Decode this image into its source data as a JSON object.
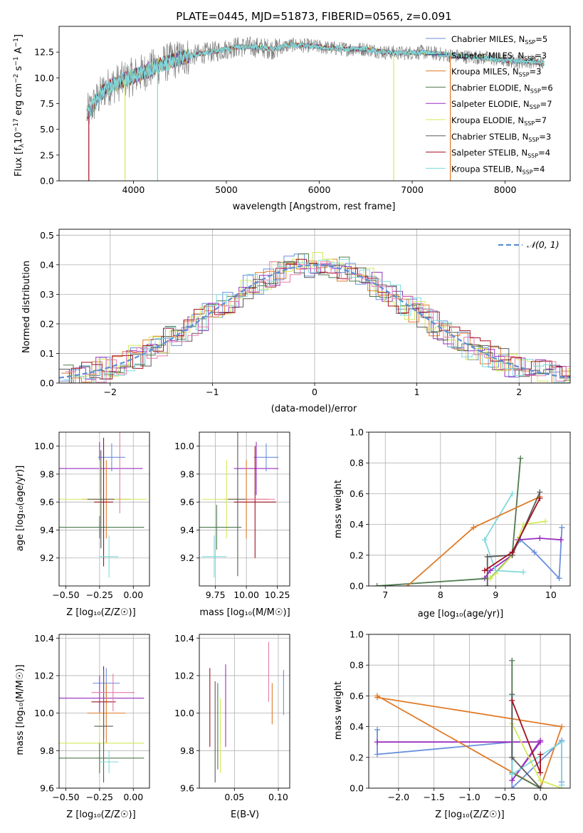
{
  "colors": {
    "Chabrier MILES": "#6a8fdc",
    "Salpeter MILES": "#2d3c88",
    "Kroupa MILES": "#e07b28",
    "Chabrier ELODIE": "#4d7a4d",
    "Salpeter ELODIE": "#9b2fc0",
    "Kroupa ELODIE": "#d4ea5a",
    "Chabrier STELIB": "#5a5a5a",
    "Salpeter STELIB": "#a3101d",
    "Kroupa STELIB": "#7fd9dc",
    "data": "#808080",
    "extra1": "#e57aa8",
    "gauss": "#5b8fd6"
  },
  "chart_data": [
    {
      "id": "spectrum",
      "type": "line",
      "title": "PLATE=0445, MJD=51873, FIBERID=0565, z=0.091",
      "xlabel": "wavelength [Angstrom, rest frame]",
      "ylabel_main": "Flux [f",
      "ylabel_sub": "λ",
      "ylabel_rest": "10",
      "ylabel_exp1": "−17",
      "ylabel_tail": " erg cm",
      "ylabel_exp2": "−2",
      "ylabel_tail2": " s",
      "ylabel_exp3": "−1",
      "ylabel_tail3": " A",
      "ylabel_exp4": "−1",
      "ylabel_end": "]",
      "xlim": [
        3200,
        8700
      ],
      "ylim": [
        0,
        15
      ],
      "xticks": [
        "4000",
        "5000",
        "6000",
        "7000",
        "8000"
      ],
      "xtick_values": [
        4000,
        5000,
        6000,
        7000,
        8000
      ],
      "yticks": [
        "0.0",
        "2.5",
        "5.0",
        "7.5",
        "10.0",
        "12.5"
      ],
      "ytick_values": [
        0,
        2.5,
        5,
        7.5,
        10,
        12.5
      ],
      "grid": false,
      "legend": [
        {
          "name": "Chabrier MILES",
          "nssp": "5"
        },
        {
          "name": "Salpeter MILES",
          "nssp": "3"
        },
        {
          "name": "Kroupa MILES",
          "nssp": "3"
        },
        {
          "name": "Chabrier ELODIE",
          "nssp": "6"
        },
        {
          "name": "Salpeter ELODIE",
          "nssp": "7"
        },
        {
          "name": "Kroupa ELODIE",
          "nssp": "7"
        },
        {
          "name": "Chabrier STELIB",
          "nssp": "3"
        },
        {
          "name": "Salpeter STELIB",
          "nssp": "4"
        },
        {
          "name": "Kroupa STELIB",
          "nssp": "4"
        }
      ],
      "legend_prefix": "N",
      "legend_sub": "SSP",
      "legend_placement": "upper right",
      "continuum_approx": {
        "x": [
          3500,
          3700,
          3900,
          4100,
          4300,
          4500,
          4700,
          4900,
          5100,
          5300,
          5500,
          5700,
          5900,
          6100,
          6300,
          6500,
          6700,
          6900,
          7100,
          7300,
          7500,
          7700,
          7900,
          8100,
          8300,
          8400
        ],
        "y": [
          6.5,
          9.0,
          9.8,
          10.5,
          11.3,
          11.9,
          12.3,
          12.6,
          13.0,
          13.0,
          12.8,
          13.2,
          13.1,
          12.9,
          12.8,
          12.8,
          12.5,
          12.4,
          12.5,
          12.3,
          12.1,
          12.0,
          11.8,
          11.6,
          11.6,
          11.4
        ]
      },
      "drops": [
        {
          "x": 3520,
          "series": "Salpeter STELIB"
        },
        {
          "x": 3910,
          "series": "Kroupa ELODIE"
        },
        {
          "x": 4260,
          "series": "Kroupa STELIB"
        },
        {
          "x": 6800,
          "series": "Kroupa ELODIE"
        },
        {
          "x": 7410,
          "series": "Kroupa MILES"
        }
      ]
    },
    {
      "id": "residuals",
      "type": "line",
      "xlabel": "(data-model)/error",
      "ylabel": "Normed distribution",
      "xlim": [
        -2.5,
        2.5
      ],
      "ylim": [
        0,
        0.52
      ],
      "xticks": [
        "−2",
        "−1",
        "0",
        "1",
        "2"
      ],
      "xtick_values": [
        -2,
        -1,
        0,
        1,
        2
      ],
      "yticks": [
        "0.0",
        "0.1",
        "0.2",
        "0.3",
        "0.4",
        "0.5"
      ],
      "ytick_values": [
        0,
        0.1,
        0.2,
        0.3,
        0.4,
        0.5
      ],
      "grid": true,
      "legend": [
        {
          "name": "𝒩(0, 1)",
          "style": "dashed"
        }
      ],
      "legend_placement": "upper right",
      "gaussian": {
        "mean": 0,
        "sigma": 1
      }
    },
    {
      "id": "age_vs_Z",
      "type": "scatter",
      "xlabel": "Z [log₁₀(Z/Z☉)]",
      "ylabel": "age  [log₁₀(age/yr)]",
      "xlim": [
        -0.55,
        0.12
      ],
      "ylim": [
        9.0,
        10.1
      ],
      "xticks": [
        "−0.50",
        "−0.25",
        "0.00"
      ],
      "xtick_values": [
        -0.5,
        -0.25,
        0
      ],
      "yticks": [
        "9.2",
        "9.4",
        "9.6",
        "9.8",
        "10.0"
      ],
      "ytick_values": [
        9.2,
        9.4,
        9.6,
        9.8,
        10.0
      ],
      "grid": true,
      "points": [
        {
          "series": "Chabrier MILES",
          "x": -0.16,
          "xerr": 0.1,
          "y": 9.92,
          "yerr": 0.1
        },
        {
          "series": "Salpeter ELODIE",
          "x": -0.25,
          "xerr": 0.32,
          "y": 9.84,
          "yerr": 0.19
        },
        {
          "series": "Kroupa MILES",
          "x": -0.2,
          "xerr": 0.18,
          "y": 9.62,
          "yerr": 0.28
        },
        {
          "series": "Kroupa ELODIE",
          "x": -0.25,
          "xerr": 0.35,
          "y": 9.62,
          "yerr": 0.28
        },
        {
          "series": "Chabrier ELODIE",
          "x": -0.25,
          "xerr": 0.33,
          "y": 9.42,
          "yerr": 0.08
        },
        {
          "series": "Salpeter STELIB",
          "x": -0.22,
          "xerr": 0.07,
          "y": 9.6,
          "yerr": 0.46
        },
        {
          "series": "Chabrier STELIB",
          "x": -0.24,
          "xerr": 0.1,
          "y": 9.62,
          "yerr": 0.35
        },
        {
          "series": "Kroupa STELIB",
          "x": -0.18,
          "xerr": 0.07,
          "y": 9.21,
          "yerr": 0.15
        },
        {
          "series": "extra1",
          "x": -0.1,
          "xerr": 0.0,
          "y": 9.85,
          "yerr": 0.33
        }
      ]
    },
    {
      "id": "age_vs_mass",
      "type": "scatter",
      "xlabel": "mass [log₁₀(M/M☉)]",
      "xlim": [
        9.62,
        10.35
      ],
      "ylim": [
        9.0,
        10.1
      ],
      "xticks": [
        "9.75",
        "10.00",
        "10.25"
      ],
      "xtick_values": [
        9.75,
        10.0,
        10.25
      ],
      "yticks": [
        "9.2",
        "9.4",
        "9.6",
        "9.8",
        "10.0"
      ],
      "ytick_values": [
        9.2,
        9.4,
        9.6,
        9.8,
        10.0
      ],
      "grid": true,
      "points": [
        {
          "series": "Chabrier MILES",
          "x": 10.16,
          "xerr": 0.1,
          "y": 9.92,
          "yerr": 0.1
        },
        {
          "series": "Salpeter ELODIE",
          "x": 10.08,
          "xerr": 0.18,
          "y": 9.84,
          "yerr": 0.19
        },
        {
          "series": "Kroupa MILES",
          "x": 10.0,
          "xerr": 0.18,
          "y": 9.62,
          "yerr": 0.28
        },
        {
          "series": "Kroupa ELODIE",
          "x": 9.84,
          "xerr": 0.2,
          "y": 9.62,
          "yerr": 0.28
        },
        {
          "series": "Chabrier ELODIE",
          "x": 9.76,
          "xerr": 0.2,
          "y": 9.42,
          "yerr": 0.16
        },
        {
          "series": "Salpeter STELIB",
          "x": 10.07,
          "xerr": 0.17,
          "y": 9.6,
          "yerr": 0.4
        },
        {
          "series": "Chabrier STELIB",
          "x": 9.93,
          "xerr": 0.08,
          "y": 9.62,
          "yerr": 0.55
        },
        {
          "series": "Kroupa STELIB",
          "x": 9.74,
          "xerr": 0.1,
          "y": 9.21,
          "yerr": 0.15
        },
        {
          "series": "extra1",
          "x": 10.11,
          "xerr": 0.12,
          "y": 9.62,
          "yerr": 0.0
        }
      ]
    },
    {
      "id": "massweight_vs_age",
      "type": "line",
      "xlabel": "age  [log₁₀(age/yr)]",
      "ylabel": "mass weight",
      "xlim": [
        6.7,
        10.35
      ],
      "ylim": [
        0,
        1.0
      ],
      "xticks": [
        "7",
        "8",
        "9",
        "10"
      ],
      "xtick_values": [
        7,
        8,
        9,
        10
      ],
      "yticks": [
        "0.0",
        "0.2",
        "0.4",
        "0.6",
        "0.8",
        "1.0"
      ],
      "ytick_values": [
        0,
        0.2,
        0.4,
        0.6,
        0.8,
        1.0
      ],
      "grid": true,
      "series": [
        {
          "name": "Chabrier MILES",
          "x": [
            10.2,
            10.15,
            9.7,
            9.45,
            9.3
          ],
          "y": [
            0.38,
            0.05,
            0.22,
            0.3,
            0.22
          ]
        },
        {
          "name": "Salpeter ELODIE",
          "x": [
            10.18,
            9.8,
            9.4,
            9.3,
            8.9,
            8.8
          ],
          "y": [
            0.3,
            0.31,
            0.3,
            0.2,
            0.1,
            0.05
          ]
        },
        {
          "name": "Chabrier ELODIE",
          "x": [
            9.45,
            9.3,
            8.9,
            6.85
          ],
          "y": [
            0.83,
            0.2,
            0.05,
            0.0
          ]
        },
        {
          "name": "Kroupa ELODIE",
          "x": [
            9.9,
            9.5,
            9.3,
            9.0,
            8.9
          ],
          "y": [
            0.42,
            0.4,
            0.2,
            0.08,
            0.05
          ]
        },
        {
          "name": "Kroupa STELIB",
          "x": [
            9.3,
            8.8,
            9.0,
            9.5
          ],
          "y": [
            0.6,
            0.3,
            0.1,
            0.09
          ]
        },
        {
          "name": "Kroupa MILES",
          "x": [
            9.8,
            8.6,
            7.4
          ],
          "y": [
            0.58,
            0.38,
            0.0
          ]
        },
        {
          "name": "Chabrier STELIB",
          "x": [
            9.8,
            9.3,
            8.85,
            8.85
          ],
          "y": [
            0.61,
            0.2,
            0.19,
            0.0
          ]
        },
        {
          "name": "Salpeter STELIB",
          "x": [
            9.8,
            9.3,
            8.8
          ],
          "y": [
            0.57,
            0.22,
            0.1
          ]
        }
      ]
    },
    {
      "id": "mass_vs_Z",
      "type": "scatter",
      "xlabel": "Z [log₁₀(Z/Z☉)]",
      "ylabel": "mass [log₁₀(M/M☉)]",
      "xlim": [
        -0.55,
        0.12
      ],
      "ylim": [
        9.6,
        10.42
      ],
      "xticks": [
        "−0.50",
        "−0.25",
        "0.00"
      ],
      "xtick_values": [
        -0.5,
        -0.25,
        0
      ],
      "yticks": [
        "9.6",
        "9.8",
        "10.0",
        "10.2",
        "10.4"
      ],
      "ytick_values": [
        9.6,
        9.8,
        10.0,
        10.2,
        10.4
      ],
      "grid": true,
      "points": [
        {
          "series": "Chabrier MILES",
          "x": -0.2,
          "xerr": 0.1,
          "y": 10.16,
          "yerr": 0.08
        },
        {
          "series": "Salpeter ELODIE",
          "x": -0.25,
          "xerr": 0.33,
          "y": 10.08,
          "yerr": 0.12
        },
        {
          "series": "Kroupa MILES",
          "x": -0.2,
          "xerr": 0.14,
          "y": 10.0,
          "yerr": 0.16
        },
        {
          "series": "Kroupa ELODIE",
          "x": -0.25,
          "xerr": 0.33,
          "y": 9.84,
          "yerr": 0.16
        },
        {
          "series": "Chabrier ELODIE",
          "x": -0.25,
          "xerr": 0.33,
          "y": 9.76,
          "yerr": 0.08
        },
        {
          "series": "Salpeter STELIB",
          "x": -0.22,
          "xerr": 0.09,
          "y": 10.06,
          "yerr": 0.19
        },
        {
          "series": "Chabrier STELIB",
          "x": -0.22,
          "xerr": 0.07,
          "y": 9.93,
          "yerr": 0.3
        },
        {
          "series": "Kroupa STELIB",
          "x": -0.18,
          "xerr": 0.07,
          "y": 9.74,
          "yerr": 0.06
        },
        {
          "series": "extra1",
          "x": -0.15,
          "xerr": 0.16,
          "y": 10.11,
          "yerr": 0.1
        }
      ]
    },
    {
      "id": "mass_vs_EBV",
      "type": "scatter",
      "xlabel": "E(B-V)",
      "xlim": [
        0.01,
        0.113
      ],
      "ylim": [
        9.6,
        10.42
      ],
      "xticks": [
        "0.05",
        "0.10"
      ],
      "xtick_values": [
        0.05,
        0.1
      ],
      "yticks": [
        "9.6",
        "9.8",
        "10.0",
        "10.2",
        "10.4"
      ],
      "ytick_values": [
        9.6,
        9.8,
        10.0,
        10.2,
        10.4
      ],
      "grid": true,
      "points": [
        {
          "series": "Salpeter STELIB",
          "x": 0.022,
          "y": 10.03,
          "yerr": 0.21
        },
        {
          "series": "Chabrier STELIB",
          "x": 0.028,
          "y": 9.9,
          "yerr": 0.27
        },
        {
          "series": "Chabrier ELODIE",
          "x": 0.031,
          "y": 9.93,
          "yerr": 0.23
        },
        {
          "series": "Kroupa ELODIE",
          "x": 0.034,
          "y": 9.88,
          "yerr": 0.2
        },
        {
          "series": "Salpeter ELODIE",
          "x": 0.04,
          "y": 10.04,
          "yerr": 0.22
        },
        {
          "series": "extra1",
          "x": 0.089,
          "y": 10.22,
          "yerr": 0.16
        },
        {
          "series": "Kroupa MILES",
          "x": 0.093,
          "y": 10.05,
          "yerr": 0.11
        },
        {
          "series": "Chabrier MILES",
          "x": 0.106,
          "y": 10.11,
          "yerr": 0.12
        }
      ]
    },
    {
      "id": "massweight_vs_Z",
      "type": "line",
      "xlabel": "Z [log₁₀(Z/Z☉)]",
      "ylabel": "mass weight",
      "xlim": [
        -2.42,
        0.42
      ],
      "ylim": [
        0,
        1.0
      ],
      "xticks": [
        "−2.0",
        "−1.5",
        "−1.0",
        "−0.5",
        "0.0"
      ],
      "xtick_values": [
        -2.0,
        -1.5,
        -1.0,
        -0.5,
        0.0
      ],
      "yticks": [
        "0.0",
        "0.2",
        "0.4",
        "0.6",
        "0.8",
        "1.0"
      ],
      "ytick_values": [
        0,
        0.2,
        0.4,
        0.6,
        0.8,
        1.0
      ],
      "grid": true,
      "series": [
        {
          "name": "Chabrier MILES",
          "x": [
            -2.3,
            -2.3,
            -0.4,
            -0.4,
            0.3,
            0.3
          ],
          "y": [
            0.38,
            0.22,
            0.3,
            0.0,
            0.31,
            0.04
          ]
        },
        {
          "name": "Salpeter ELODIE",
          "x": [
            -2.3,
            0.0,
            -0.4,
            0.0
          ],
          "y": [
            0.3,
            0.3,
            0.05,
            0.31
          ]
        },
        {
          "name": "Kroupa MILES",
          "x": [
            -2.3,
            0.0,
            0.3,
            -2.3
          ],
          "y": [
            0.6,
            0.0,
            0.4,
            0.59
          ]
        },
        {
          "name": "Chabrier ELODIE",
          "x": [
            -0.4,
            -0.4,
            0.0
          ],
          "y": [
            0.83,
            0.1,
            0.0
          ]
        },
        {
          "name": "Kroupa ELODIE",
          "x": [
            -0.4,
            0.0,
            0.3
          ],
          "y": [
            0.42,
            0.05,
            0.0
          ]
        },
        {
          "name": "Kroupa STELIB",
          "x": [
            -0.4,
            -0.4,
            0.3,
            0.3
          ],
          "y": [
            0.6,
            0.09,
            0.3,
            0.02
          ]
        },
        {
          "name": "Chabrier STELIB",
          "x": [
            -0.4,
            -0.4,
            0.0
          ],
          "y": [
            0.61,
            0.2,
            0.0
          ]
        },
        {
          "name": "Salpeter STELIB",
          "x": [
            -0.4,
            0.0,
            0.0
          ],
          "y": [
            0.57,
            0.1,
            0.22
          ]
        }
      ]
    }
  ]
}
